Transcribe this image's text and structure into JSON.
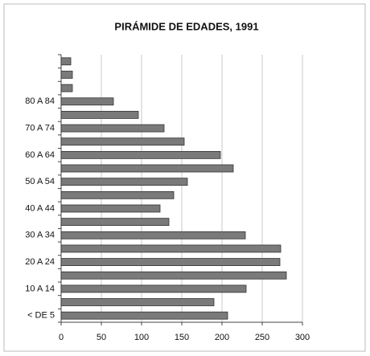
{
  "chart_data": {
    "type": "bar",
    "orientation": "horizontal",
    "title": "PIRÁMIDE DE EDADES, 1991",
    "categories": [
      "< DE 5",
      null,
      "10 A 14",
      null,
      "20 A 24",
      null,
      "30 A 34",
      null,
      "40 A 44",
      null,
      "50 A 54",
      null,
      "60 A 64",
      null,
      "70 A 74",
      null,
      "80 A 84",
      null,
      null,
      null
    ],
    "values": [
      207,
      190,
      230,
      280,
      272,
      273,
      229,
      134,
      123,
      140,
      157,
      214,
      198,
      153,
      128,
      96,
      65,
      14,
      14,
      12
    ],
    "color": "#7a7a7a",
    "xlim": [
      0,
      300
    ],
    "xticks": [
      0,
      50,
      100,
      150,
      200,
      250,
      300
    ],
    "grid": true
  }
}
